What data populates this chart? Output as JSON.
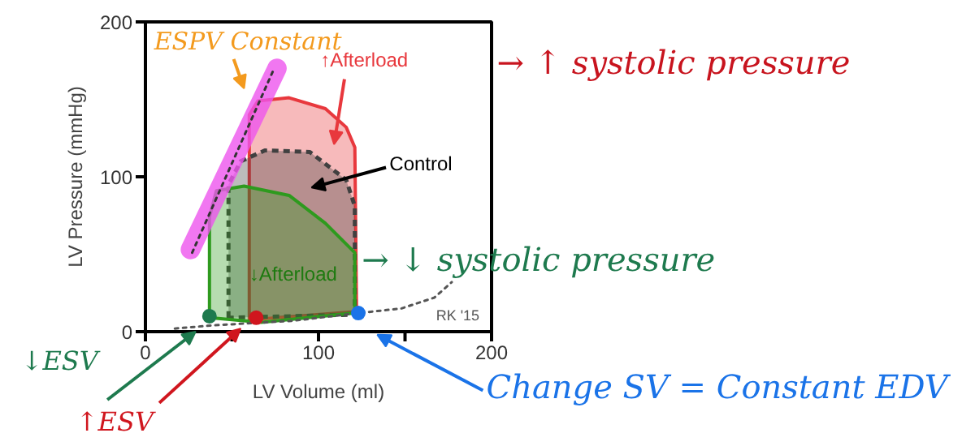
{
  "chart_data": {
    "type": "area",
    "xlabel": "LV Volume (ml)",
    "ylabel": "LV Pressure (mmHg)",
    "xlim": [
      0,
      200
    ],
    "ylim": [
      0,
      200
    ],
    "xticks": [
      0,
      {
        "value": 50,
        "label": null
      },
      100,
      {
        "value": 150,
        "label": null
      },
      200
    ],
    "yticks": [
      0,
      100,
      200
    ],
    "series": [
      {
        "color": "#e8383d",
        "x": [
          60,
          60,
          65,
          83,
          104,
          116,
          121,
          122,
          64,
          60
        ],
        "values": [
          8,
          140,
          149,
          151,
          144,
          132,
          119,
          13,
          8,
          8
        ]
      },
      {
        "color": "#404040",
        "line_style": "dashed",
        "x": [
          48,
          48,
          55,
          69,
          95,
          116,
          121,
          121,
          48
        ],
        "values": [
          9,
          95,
          110,
          117,
          116,
          98,
          81,
          11,
          9
        ]
      },
      {
        "color": "#2e9a1e",
        "x": [
          37,
          37,
          41,
          57,
          83,
          104,
          121,
          121,
          67,
          37
        ],
        "values": [
          9,
          74,
          91,
          94,
          88,
          70,
          51,
          12,
          6,
          9
        ]
      },
      {
        "type": "line",
        "color": "#ee55ee",
        "x": [
          26,
          76
        ],
        "values": [
          53,
          170
        ]
      },
      {
        "type": "line",
        "color": "#333333",
        "line_style": "dotted",
        "x": [
          27,
          74
        ],
        "values": [
          51,
          169
        ]
      },
      {
        "type": "line",
        "color": "#555555",
        "line_style": "dotted",
        "x": [
          17,
          38,
          85,
          123,
          148,
          167,
          177
        ],
        "values": [
          2,
          4,
          7,
          12,
          15,
          22,
          32
        ]
      },
      {
        "type": "scatter",
        "marker": "circle",
        "x": [
          37,
          64,
          123
        ],
        "values": [
          10,
          9,
          12
        ],
        "colors": [
          "#1e7a4e",
          "#d0161e",
          "#1a73e8"
        ]
      }
    ],
    "annotations": [
      "ESPV Constant",
      "↑Afterload",
      "→ ↑ systolic pressure",
      "Control",
      "↓Afterload",
      "→ ↓ systolic pressure",
      "RK '15",
      {
        "text": "↓ESV",
        "x": 29,
        "y": 0
      },
      {
        "text": "↑ESV",
        "x": 55,
        "y": 2
      },
      "Change SV = Constant EDV"
    ]
  }
}
